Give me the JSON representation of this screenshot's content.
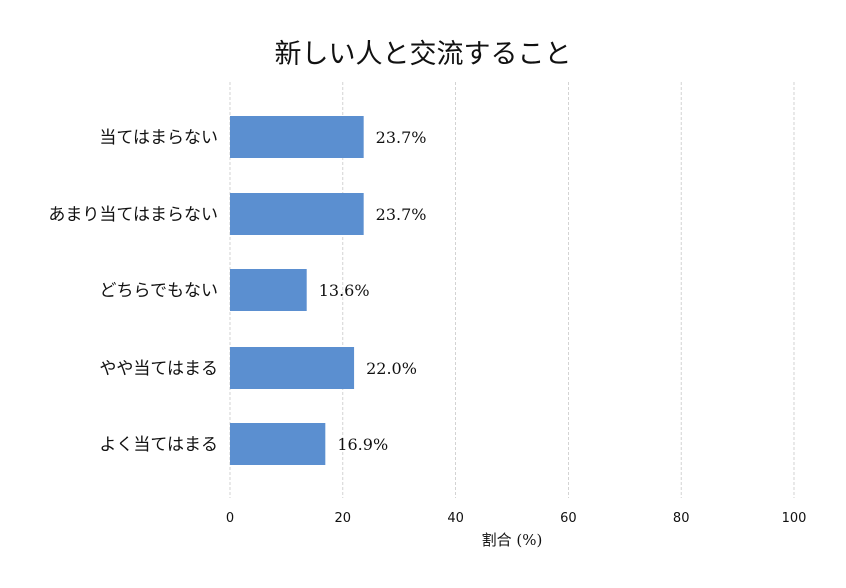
{
  "chart_data": {
    "type": "bar",
    "orientation": "horizontal",
    "title": "新しい人と交流すること",
    "xlabel": "割合 (%)",
    "ylabel": "",
    "categories": [
      "当てはまらない",
      "あまり当てはまらない",
      "どちらでもない",
      "やや当てはまる",
      "よく当てはまる"
    ],
    "values": [
      23.7,
      23.7,
      13.6,
      22.0,
      16.9
    ],
    "value_labels": [
      "23.7%",
      "23.7%",
      "13.6%",
      "22.0%",
      "16.9%"
    ],
    "xlim": [
      0,
      100
    ],
    "xticks": [
      "0",
      "20",
      "40",
      "60",
      "80",
      "100"
    ],
    "grid": "vertical dashed",
    "bar_color": "#5b8fd0"
  }
}
